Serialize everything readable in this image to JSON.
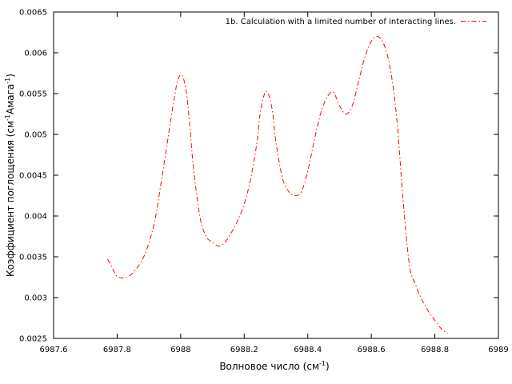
{
  "chart_data": {
    "type": "line",
    "xlabel": "Волновое число (см",
    "xlabel_sup": "-1",
    "xlabel_end": ")",
    "ylabel": {
      "part1": "Коэффициент поглощения (см",
      "sup1": "-1",
      "part2": "Амага",
      "sup2": "-1",
      "part3": ")"
    },
    "xlim": [
      6987.6,
      6989
    ],
    "ylim": [
      0.0025,
      0.0065
    ],
    "x_ticks": [
      6987.6,
      6987.8,
      6988,
      6988.2,
      6988.4,
      6988.6,
      6988.8,
      6989
    ],
    "x_tick_labels": [
      "6987.6",
      "6987.8",
      "6988",
      "6988.2",
      "6988.4",
      "6988.6",
      "6988.8",
      "6989"
    ],
    "y_ticks": [
      0.0025,
      0.003,
      0.0035,
      0.004,
      0.0045,
      0.005,
      0.0055,
      0.006,
      0.0065
    ],
    "y_tick_labels": [
      "0.0025",
      "0.003",
      "0.0035",
      "0.004",
      "0.0045",
      "0.005",
      "0.0055",
      "0.006",
      "0.0065"
    ],
    "grid": false,
    "legend_position": "top-right",
    "series": [
      {
        "name": "1b. Calculation with a limited number of interacting lines.",
        "color": "#ff0000",
        "line_style": "dash-dot",
        "x": [
          6987.77,
          6987.78,
          6987.79,
          6987.8,
          6987.82,
          6987.84,
          6987.86,
          6987.88,
          6987.9,
          6987.92,
          6987.94,
          6987.96,
          6987.98,
          6987.99,
          6988.0,
          6988.01,
          6988.02,
          6988.03,
          6988.04,
          6988.06,
          6988.08,
          6988.1,
          6988.12,
          6988.14,
          6988.16,
          6988.18,
          6988.2,
          6988.22,
          6988.24,
          6988.25,
          6988.26,
          6988.27,
          6988.28,
          6988.29,
          6988.3,
          6988.32,
          6988.34,
          6988.36,
          6988.38,
          6988.4,
          6988.42,
          6988.44,
          6988.46,
          6988.48,
          6988.5,
          6988.52,
          6988.54,
          6988.56,
          6988.58,
          6988.6,
          6988.62,
          6988.64,
          6988.66,
          6988.68,
          6988.7,
          6988.72,
          6988.74,
          6988.76,
          6988.78,
          6988.8,
          6988.82,
          6988.84
        ],
        "y": [
          0.00347,
          0.0034,
          0.00332,
          0.00326,
          0.00324,
          0.00327,
          0.00335,
          0.00347,
          0.00367,
          0.00397,
          0.00445,
          0.00495,
          0.00545,
          0.00565,
          0.00573,
          0.00567,
          0.00545,
          0.00505,
          0.0046,
          0.004,
          0.00375,
          0.00368,
          0.00363,
          0.00368,
          0.0038,
          0.00395,
          0.00415,
          0.00445,
          0.0049,
          0.00525,
          0.00545,
          0.00553,
          0.00545,
          0.00525,
          0.0049,
          0.00447,
          0.0043,
          0.00425,
          0.0043,
          0.00455,
          0.00492,
          0.00525,
          0.00545,
          0.00552,
          0.00535,
          0.00525,
          0.00535,
          0.00565,
          0.00595,
          0.00614,
          0.0062,
          0.0061,
          0.0058,
          0.0052,
          0.0042,
          0.0034,
          0.00315,
          0.00297,
          0.00283,
          0.00272,
          0.00262,
          0.00256
        ]
      }
    ]
  }
}
